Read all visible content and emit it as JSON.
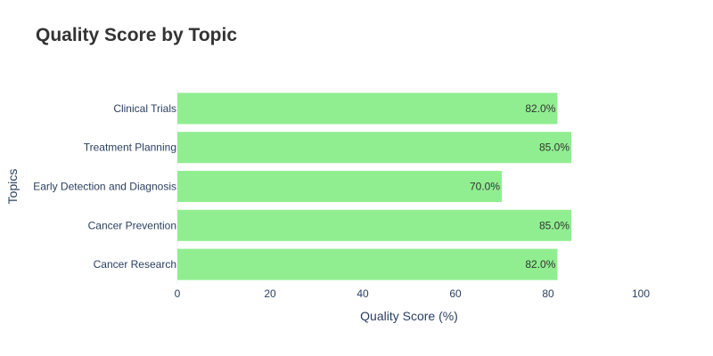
{
  "chart_data": {
    "type": "bar",
    "orientation": "horizontal",
    "title": "Quality Score by Topic",
    "xlabel": "Quality Score (%)",
    "ylabel": "Topics",
    "xlim": [
      0,
      100
    ],
    "xticks": [
      0,
      20,
      40,
      60,
      80,
      100
    ],
    "categories": [
      "Cancer Research",
      "Cancer Prevention",
      "Early Detection and Diagnosis",
      "Treatment Planning",
      "Clinical Trials"
    ],
    "values": [
      82,
      85,
      70,
      85,
      82
    ],
    "data_labels": [
      "82.0%",
      "85.0%",
      "70.0%",
      "85.0%",
      "82.0%"
    ],
    "bar_color": "#90ee90",
    "grid": false,
    "legend": "none"
  }
}
